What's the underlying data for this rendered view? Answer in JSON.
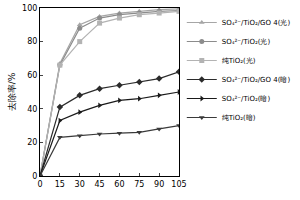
{
  "chart_data": {
    "type": "line",
    "y_label": "去除率/%",
    "x": [
      0,
      15,
      30,
      45,
      60,
      75,
      90,
      105
    ],
    "xlim": [
      0,
      105
    ],
    "xticks": [
      0,
      15,
      30,
      45,
      60,
      75,
      90,
      105
    ],
    "ylim": [
      0,
      100
    ],
    "yticks": [
      0,
      20,
      40,
      60,
      80,
      100
    ],
    "grid": false,
    "legend": "right",
    "series": [
      {
        "name": "SO₄²⁻/TiO₂/GO 4(光)",
        "color": "#a6a6a6",
        "marker": "triangle-up",
        "values": [
          0,
          67,
          90,
          95,
          97,
          98,
          99,
          99.5
        ]
      },
      {
        "name": "SO₄²⁻/TiO₂(光)",
        "color": "#8c8c8c",
        "marker": "circle",
        "values": [
          0,
          66,
          88,
          94,
          96,
          97,
          98,
          98.5
        ]
      },
      {
        "name": "纯TiO₂(光)",
        "color": "#b3b3b3",
        "marker": "square",
        "values": [
          0,
          66,
          80,
          91,
          94,
          96,
          97,
          98
        ]
      },
      {
        "name": "SO₄²⁻/TiO₂/GO 4(暗)",
        "color": "#2b2b2b",
        "marker": "diamond",
        "values": [
          0,
          41,
          48,
          52,
          54,
          56,
          58,
          62
        ]
      },
      {
        "name": "SO₄²⁻/TiO₂(暗)",
        "color": "#1a1a1a",
        "marker": "triangle-right",
        "values": [
          0,
          33,
          38,
          42,
          45,
          46,
          48,
          50
        ]
      },
      {
        "name": "纯TiO₂(暗)",
        "color": "#3a3a3a",
        "marker": "triangle-down",
        "values": [
          0,
          23,
          24,
          25,
          25.5,
          26,
          28,
          30
        ]
      }
    ]
  }
}
